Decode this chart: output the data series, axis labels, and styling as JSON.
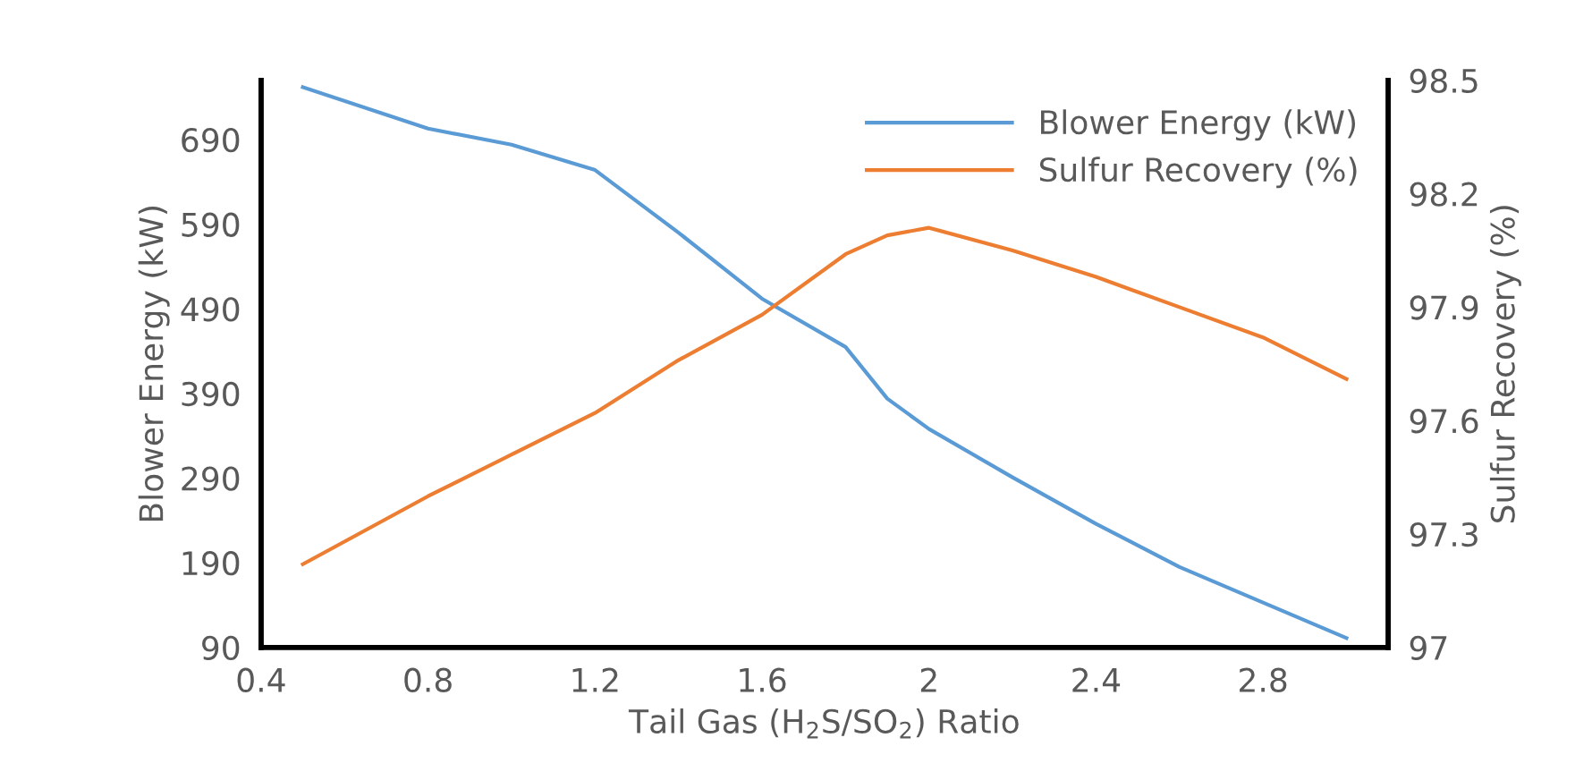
{
  "chart_data": {
    "type": "line",
    "xlabel": "Tail Gas (H$_{2}$S/SO$_{2}$) Ratio",
    "ylabel": "Blower Energy (kW)",
    "y2label": "Sulfur Recovery (%)",
    "x": [
      0.5,
      0.8,
      1.0,
      1.2,
      1.4,
      1.6,
      1.8,
      1.9,
      2.0,
      2.2,
      2.4,
      2.6,
      2.8,
      3.0
    ],
    "series": [
      {
        "name": "Blower Energy (kW)",
        "color": "#5b9bd5",
        "values": [
          752,
          703,
          684,
          654,
          580,
          502,
          445,
          384,
          348,
          291,
          236,
          185,
          143,
          101
        ]
      },
      {
        "name": "Sulfur Recovery (%)",
        "color": "#ed7d31",
        "axis": "y2",
        "values": [
          97.22,
          97.4,
          97.51,
          97.62,
          97.76,
          97.88,
          98.04,
          98.09,
          98.11,
          98.05,
          97.98,
          97.9,
          97.82,
          97.71
        ]
      }
    ],
    "xlim": [
      0.4,
      3.1
    ],
    "xticks": [
      0.4,
      {
        "value": 0.8,
        "label": "0.8"
      },
      1.2,
      1.6,
      2,
      2.4,
      2.8
    ],
    "ylim": [
      90,
      760
    ],
    "yticks": [
      90,
      190,
      290,
      390,
      490,
      590,
      690
    ],
    "y2lim": [
      97,
      98.5
    ],
    "y2ticks": [
      97,
      97.3,
      97.6,
      97.9,
      98.2,
      98.5
    ],
    "legend": "top right",
    "grid": false
  }
}
